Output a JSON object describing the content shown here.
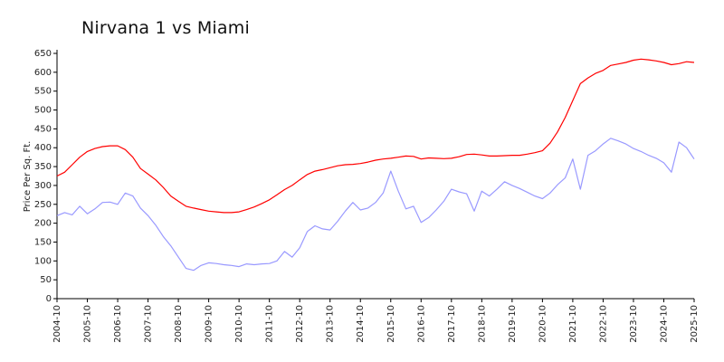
{
  "chart_data": {
    "type": "line",
    "title": "Nirvana 1 vs Miami",
    "xlabel": "",
    "ylabel": "Price Per Sq. Ft.",
    "ylim": [
      0,
      650
    ],
    "yticks": [
      0,
      50,
      100,
      150,
      200,
      250,
      300,
      350,
      400,
      450,
      500,
      550,
      600,
      650
    ],
    "xlim": [
      "2004-10",
      "2025-10"
    ],
    "xticks": [
      "2004-10",
      "2005-10",
      "2006-10",
      "2007-10",
      "2008-10",
      "2009-10",
      "2010-10",
      "2011-10",
      "2012-10",
      "2013-10",
      "2014-10",
      "2015-10",
      "2016-10",
      "2017-10",
      "2018-10",
      "2019-10",
      "2020-10",
      "2021-10",
      "2022-10",
      "2023-10",
      "2024-10",
      "2025-10"
    ],
    "grid": false,
    "legend": "none",
    "series": [
      {
        "color": "#ff0000",
        "points": [
          [
            "2004-10",
            325
          ],
          [
            "2005-01",
            335
          ],
          [
            "2005-04",
            355
          ],
          [
            "2005-07",
            375
          ],
          [
            "2005-10",
            390
          ],
          [
            "2006-01",
            398
          ],
          [
            "2006-04",
            403
          ],
          [
            "2006-07",
            405
          ],
          [
            "2006-10",
            405
          ],
          [
            "2007-01",
            395
          ],
          [
            "2007-04",
            375
          ],
          [
            "2007-07",
            345
          ],
          [
            "2007-10",
            330
          ],
          [
            "2008-01",
            315
          ],
          [
            "2008-04",
            295
          ],
          [
            "2008-07",
            272
          ],
          [
            "2008-10",
            258
          ],
          [
            "2009-01",
            245
          ],
          [
            "2009-04",
            240
          ],
          [
            "2009-07",
            236
          ],
          [
            "2009-10",
            232
          ],
          [
            "2010-01",
            230
          ],
          [
            "2010-04",
            228
          ],
          [
            "2010-07",
            228
          ],
          [
            "2010-10",
            230
          ],
          [
            "2011-01",
            236
          ],
          [
            "2011-04",
            243
          ],
          [
            "2011-07",
            252
          ],
          [
            "2011-10",
            262
          ],
          [
            "2012-01",
            275
          ],
          [
            "2012-04",
            289
          ],
          [
            "2012-07",
            300
          ],
          [
            "2012-10",
            315
          ],
          [
            "2013-01",
            329
          ],
          [
            "2013-04",
            338
          ],
          [
            "2013-07",
            342
          ],
          [
            "2013-10",
            347
          ],
          [
            "2014-01",
            352
          ],
          [
            "2014-04",
            355
          ],
          [
            "2014-07",
            356
          ],
          [
            "2014-10",
            358
          ],
          [
            "2015-01",
            362
          ],
          [
            "2015-04",
            367
          ],
          [
            "2015-07",
            370
          ],
          [
            "2015-10",
            372
          ],
          [
            "2016-01",
            375
          ],
          [
            "2016-04",
            378
          ],
          [
            "2016-07",
            377
          ],
          [
            "2016-10",
            370
          ],
          [
            "2017-01",
            373
          ],
          [
            "2017-04",
            372
          ],
          [
            "2017-07",
            371
          ],
          [
            "2017-10",
            372
          ],
          [
            "2018-01",
            376
          ],
          [
            "2018-04",
            382
          ],
          [
            "2018-07",
            383
          ],
          [
            "2018-10",
            381
          ],
          [
            "2019-01",
            378
          ],
          [
            "2019-04",
            378
          ],
          [
            "2019-07",
            379
          ],
          [
            "2019-10",
            380
          ],
          [
            "2020-01",
            380
          ],
          [
            "2020-04",
            383
          ],
          [
            "2020-07",
            387
          ],
          [
            "2020-10",
            392
          ],
          [
            "2021-01",
            412
          ],
          [
            "2021-04",
            442
          ],
          [
            "2021-07",
            480
          ],
          [
            "2021-10",
            525
          ],
          [
            "2022-01",
            570
          ],
          [
            "2022-04",
            585
          ],
          [
            "2022-07",
            597
          ],
          [
            "2022-10",
            605
          ],
          [
            "2023-01",
            618
          ],
          [
            "2023-04",
            622
          ],
          [
            "2023-07",
            626
          ],
          [
            "2023-10",
            632
          ],
          [
            "2024-01",
            635
          ],
          [
            "2024-04",
            633
          ],
          [
            "2024-07",
            630
          ],
          [
            "2024-10",
            626
          ],
          [
            "2025-01",
            620
          ],
          [
            "2025-04",
            623
          ],
          [
            "2025-07",
            628
          ],
          [
            "2025-10",
            626
          ]
        ]
      },
      {
        "color": "#9999ff",
        "points": [
          [
            "2004-10",
            220
          ],
          [
            "2005-01",
            228
          ],
          [
            "2005-04",
            222
          ],
          [
            "2005-07",
            245
          ],
          [
            "2005-10",
            225
          ],
          [
            "2006-01",
            238
          ],
          [
            "2006-04",
            255
          ],
          [
            "2006-07",
            256
          ],
          [
            "2006-10",
            250
          ],
          [
            "2007-01",
            280
          ],
          [
            "2007-04",
            272
          ],
          [
            "2007-07",
            240
          ],
          [
            "2007-10",
            220
          ],
          [
            "2008-01",
            195
          ],
          [
            "2008-04",
            165
          ],
          [
            "2008-07",
            140
          ],
          [
            "2008-10",
            110
          ],
          [
            "2009-01",
            80
          ],
          [
            "2009-04",
            75
          ],
          [
            "2009-07",
            88
          ],
          [
            "2009-10",
            95
          ],
          [
            "2010-01",
            93
          ],
          [
            "2010-04",
            90
          ],
          [
            "2010-07",
            88
          ],
          [
            "2010-10",
            85
          ],
          [
            "2011-01",
            92
          ],
          [
            "2011-04",
            90
          ],
          [
            "2011-07",
            92
          ],
          [
            "2011-10",
            93
          ],
          [
            "2012-01",
            100
          ],
          [
            "2012-04",
            125
          ],
          [
            "2012-07",
            110
          ],
          [
            "2012-10",
            135
          ],
          [
            "2013-01",
            178
          ],
          [
            "2013-04",
            193
          ],
          [
            "2013-07",
            185
          ],
          [
            "2013-10",
            182
          ],
          [
            "2014-01",
            205
          ],
          [
            "2014-04",
            232
          ],
          [
            "2014-07",
            255
          ],
          [
            "2014-10",
            235
          ],
          [
            "2015-01",
            240
          ],
          [
            "2015-04",
            255
          ],
          [
            "2015-07",
            280
          ],
          [
            "2015-10",
            338
          ],
          [
            "2016-01",
            285
          ],
          [
            "2016-04",
            238
          ],
          [
            "2016-07",
            245
          ],
          [
            "2016-10",
            202
          ],
          [
            "2017-01",
            215
          ],
          [
            "2017-04",
            235
          ],
          [
            "2017-07",
            258
          ],
          [
            "2017-10",
            290
          ],
          [
            "2018-01",
            283
          ],
          [
            "2018-04",
            278
          ],
          [
            "2018-07",
            232
          ],
          [
            "2018-10",
            285
          ],
          [
            "2019-01",
            272
          ],
          [
            "2019-04",
            290
          ],
          [
            "2019-07",
            310
          ],
          [
            "2019-10",
            300
          ],
          [
            "2020-01",
            292
          ],
          [
            "2020-04",
            282
          ],
          [
            "2020-07",
            272
          ],
          [
            "2020-10",
            265
          ],
          [
            "2021-01",
            280
          ],
          [
            "2021-04",
            302
          ],
          [
            "2021-07",
            320
          ],
          [
            "2021-10",
            370
          ],
          [
            "2022-01",
            290
          ],
          [
            "2022-04",
            380
          ],
          [
            "2022-07",
            392
          ],
          [
            "2022-10",
            410
          ],
          [
            "2023-01",
            425
          ],
          [
            "2023-04",
            418
          ],
          [
            "2023-07",
            410
          ],
          [
            "2023-10",
            398
          ],
          [
            "2024-01",
            390
          ],
          [
            "2024-04",
            380
          ],
          [
            "2024-07",
            372
          ],
          [
            "2024-10",
            360
          ],
          [
            "2025-01",
            335
          ],
          [
            "2025-04",
            415
          ],
          [
            "2025-07",
            400
          ],
          [
            "2025-10",
            370
          ]
        ]
      }
    ]
  }
}
